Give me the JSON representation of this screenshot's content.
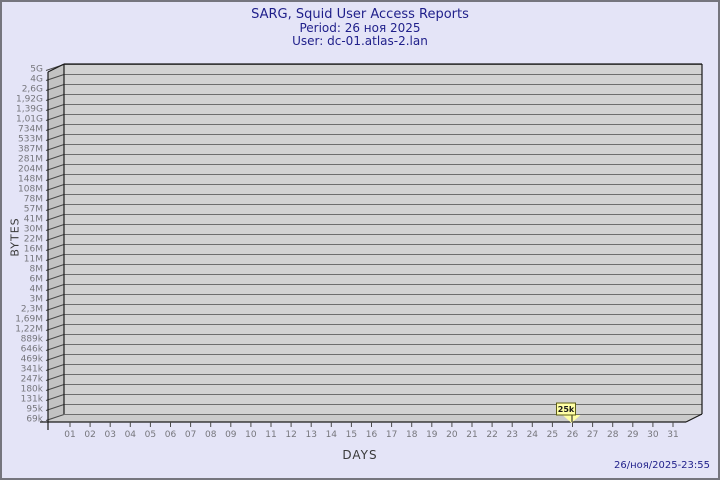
{
  "window": {
    "background": "#e4e4f7",
    "border_color": "#75757e"
  },
  "header": {
    "title": "SARG, Squid User Access Reports",
    "period": "Period: 26 ноя 2025",
    "user": "User: dc-01.atlas-2.lan",
    "text_color": "#1f1f8a"
  },
  "footer": {
    "timestamp": "26/ноя/2025-23:55"
  },
  "chart_data": {
    "type": "line",
    "title": "SARG, Squid User Access Reports",
    "subtitle_period": "Period: 26 ноя 2025",
    "subtitle_user": "User: dc-01.atlas-2.lan",
    "xlabel": "DAYS",
    "ylabel": "BYTES",
    "grid": true,
    "legend_position": "none",
    "x_tick_labels": [
      "01",
      "02",
      "03",
      "04",
      "05",
      "06",
      "07",
      "08",
      "09",
      "10",
      "11",
      "12",
      "13",
      "14",
      "15",
      "16",
      "17",
      "18",
      "19",
      "20",
      "21",
      "22",
      "23",
      "24",
      "25",
      "26",
      "27",
      "28",
      "29",
      "30",
      "31"
    ],
    "y_tick_labels": [
      "5G",
      "4G",
      "2,6G",
      "1,92G",
      "1,39G",
      "1,01G",
      "734M",
      "533M",
      "387M",
      "281M",
      "204M",
      "148M",
      "108M",
      "78M",
      "57M",
      "41M",
      "30M",
      "22M",
      "16M",
      "11M",
      "8M",
      "6M",
      "4M",
      "3M",
      "2,3M",
      "1,69M",
      "1,22M",
      "889k",
      "646k",
      "469k",
      "341k",
      "247k",
      "180k",
      "131k",
      "95k",
      "69k"
    ],
    "points": [
      {
        "day": 26,
        "value_label": "25k",
        "value_bytes": 25000
      }
    ],
    "marker": {
      "label": "25k",
      "box_fill": "#ffffa6",
      "box_border": "#5f5f14"
    },
    "colors": {
      "plot_bg": "#d2d2d2",
      "wall_fill": "#c2c2c2",
      "floor_fill": "#cbcbcb",
      "gridline": "#6e6e6e",
      "outline": "#1a1a1a",
      "tick": "#4a4a4a",
      "tick_label": "#76767c",
      "axis_label": "#3a3a3a"
    }
  }
}
